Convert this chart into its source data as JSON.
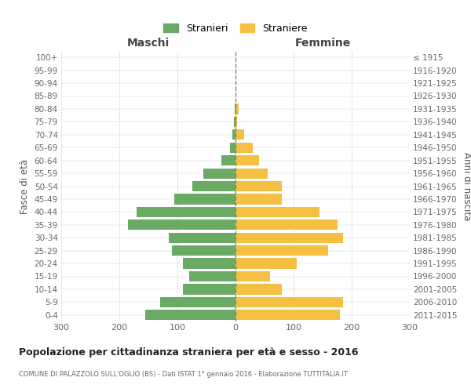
{
  "age_groups": [
    "100+",
    "95-99",
    "90-94",
    "85-89",
    "80-84",
    "75-79",
    "70-74",
    "65-69",
    "60-64",
    "55-59",
    "50-54",
    "45-49",
    "40-44",
    "35-39",
    "30-34",
    "25-29",
    "20-24",
    "15-19",
    "10-14",
    "5-9",
    "0-4"
  ],
  "birth_years": [
    "≤ 1915",
    "1916-1920",
    "1921-1925",
    "1926-1930",
    "1931-1935",
    "1936-1940",
    "1941-1945",
    "1946-1950",
    "1951-1955",
    "1956-1960",
    "1961-1965",
    "1966-1970",
    "1971-1975",
    "1976-1980",
    "1981-1985",
    "1986-1990",
    "1991-1995",
    "1996-2000",
    "2001-2005",
    "2006-2010",
    "2011-2015"
  ],
  "maschi": [
    0,
    0,
    0,
    0,
    2,
    3,
    5,
    10,
    25,
    55,
    75,
    105,
    170,
    185,
    115,
    110,
    90,
    80,
    90,
    130,
    155
  ],
  "femmine": [
    0,
    0,
    0,
    0,
    5,
    3,
    15,
    30,
    40,
    55,
    80,
    80,
    145,
    175,
    185,
    160,
    105,
    60,
    80,
    185,
    180
  ],
  "male_color": "#6aaa64",
  "female_color": "#f5bf42",
  "bg_color": "#ffffff",
  "grid_color": "#cccccc",
  "title": "Popolazione per cittadinanza straniera per età e sesso - 2016",
  "subtitle": "COMUNE DI PALAZZOLO SULL'OGLIO (BS) - Dati ISTAT 1° gennaio 2016 - Elaborazione TUTTITALIA.IT",
  "legend_male": "Stranieri",
  "legend_female": "Straniere",
  "xlabel_left": "Maschi",
  "xlabel_right": "Femmine",
  "ylabel_left": "Fasce di età",
  "ylabel_right": "Anni di nascita",
  "xlim": 300,
  "center_line_color": "#888866",
  "bar_height": 0.8
}
